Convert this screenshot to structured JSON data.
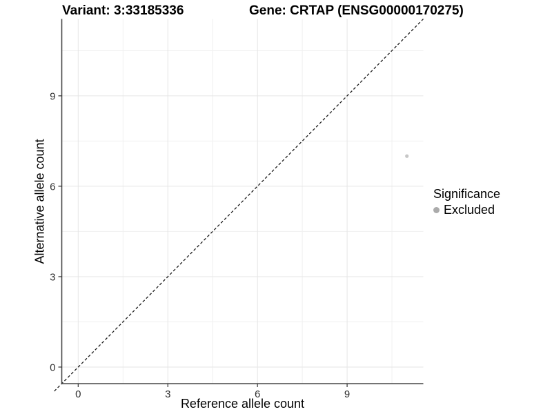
{
  "chart_data": {
    "type": "scatter",
    "title_left": "Variant: 3:33185336",
    "title_right": "Gene: CRTAP (ENSG00000170275)",
    "xlabel": "Reference allele count",
    "ylabel": "Alternative allele count",
    "xlim": [
      -0.55,
      11.55
    ],
    "ylim": [
      -0.55,
      11.55
    ],
    "x_ticks": [
      0,
      3,
      6,
      9
    ],
    "y_ticks": [
      0,
      3,
      6,
      9
    ],
    "x_minor_ticks": [
      1.5,
      4.5,
      7.5,
      10.5
    ],
    "y_minor_ticks": [
      1.5,
      4.5,
      7.5,
      10.5
    ],
    "grid": true,
    "points": [
      {
        "x": 11,
        "y": 7,
        "series": "Excluded"
      }
    ],
    "abline": {
      "slope": 1,
      "intercept": 0,
      "style": "dashed",
      "color": "#1a1a1a"
    },
    "legend": {
      "title": "Significance",
      "position": "right",
      "items": [
        {
          "label": "Excluded",
          "color": "#ababab"
        }
      ]
    },
    "colors": {
      "point": "#c7c7c7",
      "axis_line": "#464646",
      "tick_mark": "#333333",
      "grid_major": "#e5e5e5",
      "grid_minor": "#f0f0f0",
      "background": "#ffffff"
    }
  }
}
